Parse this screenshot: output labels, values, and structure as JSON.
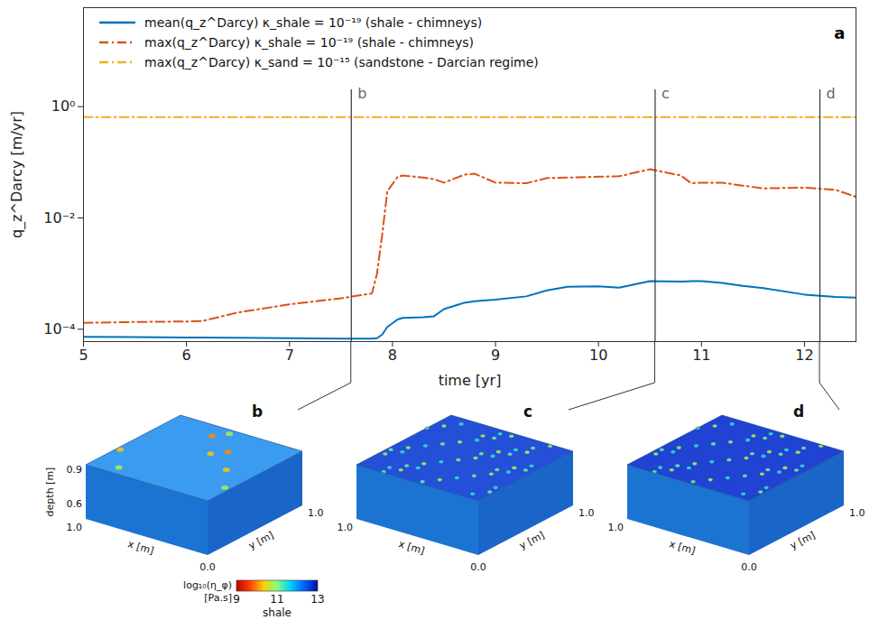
{
  "chart_data": {
    "type": "line",
    "panel_label": "a",
    "x_label": "time [yr]",
    "y_label": "q_z^Darcy [m/yr]",
    "log": "y",
    "grid": false,
    "legend": "top-left",
    "xlim": [
      5,
      12.5
    ],
    "xticks": [
      5,
      6,
      7,
      8,
      9,
      10,
      11,
      12
    ],
    "ylim": [
      6e-05,
      60
    ],
    "yticks": [
      {
        "value": 0.0001,
        "label": "10⁻⁴"
      },
      {
        "value": 0.01,
        "label": "10⁻²"
      },
      {
        "value": 1,
        "label": "10⁰"
      }
    ],
    "x": [
      5,
      5.5,
      6,
      6.15,
      6.5,
      7,
      7.5,
      7.8,
      7.85,
      7.9,
      7.95,
      8.05,
      8.1,
      8.3,
      8.4,
      8.5,
      8.7,
      8.8,
      9,
      9.3,
      9.5,
      9.7,
      10,
      10.2,
      10.5,
      10.8,
      10.9,
      11,
      11.2,
      11.4,
      11.6,
      12,
      12.3,
      12.5
    ],
    "series": [
      {
        "name": "mean(q_z^Darcy)   κ_shale = 10⁻¹⁹ (shale - chimneys)",
        "color": "#0072bd",
        "line_style": "solid",
        "values": [
          7.3e-05,
          7.2e-05,
          7.1e-05,
          7.1e-05,
          7e-05,
          6.9e-05,
          6.8e-05,
          6.8e-05,
          6.9e-05,
          8e-05,
          0.00011,
          0.00015,
          0.00016,
          0.000165,
          0.00017,
          0.00023,
          0.0003,
          0.00032,
          0.00034,
          0.00039,
          0.0005,
          0.00058,
          0.00059,
          0.00056,
          0.00073,
          0.00072,
          0.00073,
          0.00073,
          0.00068,
          0.0006,
          0.00055,
          0.00042,
          0.00038,
          0.00037
        ]
      },
      {
        "name": "max(q_z^Darcy)   κ_shale = 10⁻¹⁹ (shale - chimneys)",
        "color": "#d95319",
        "line_style": "dashdot",
        "values": [
          0.00013,
          0.000135,
          0.000138,
          0.00014,
          0.0002,
          0.00028,
          0.00036,
          0.00044,
          0.001,
          0.005,
          0.03,
          0.055,
          0.058,
          0.053,
          0.05,
          0.043,
          0.06,
          0.062,
          0.043,
          0.042,
          0.052,
          0.053,
          0.055,
          0.056,
          0.075,
          0.058,
          0.042,
          0.043,
          0.043,
          0.038,
          0.034,
          0.035,
          0.032,
          0.024
        ]
      },
      {
        "name": "max(q_z^Darcy)   κ_sand = 10⁻¹⁵ (sandstone - Darcian regime)",
        "color": "#edb120",
        "line_style": "dashdot",
        "values": [
          0.65,
          0.65,
          0.65,
          0.65,
          0.65,
          0.65,
          0.65,
          0.65,
          0.65,
          0.65,
          0.65,
          0.65,
          0.65,
          0.65,
          0.65,
          0.65,
          0.65,
          0.65,
          0.65,
          0.65,
          0.65,
          0.65,
          0.65,
          0.65,
          0.65,
          0.65,
          0.65,
          0.65,
          0.65,
          0.65,
          0.65,
          0.65,
          0.65,
          0.65
        ]
      }
    ],
    "markers": [
      {
        "label": "b",
        "x": 7.6,
        "y": 2
      },
      {
        "label": "c",
        "x": 10.55,
        "y": 2
      },
      {
        "label": "d",
        "x": 12.15,
        "y": 2
      }
    ]
  },
  "views": {
    "renderings": [
      {
        "label": "b",
        "depth_label": "depth [m]",
        "depth_ticks": [
          "0.9",
          "0.6"
        ],
        "x_label": "x [m]",
        "x_ticks": [
          "1.0",
          "0.0"
        ],
        "y_label": "y [m]",
        "y_ticks": [
          "1.0"
        ]
      },
      {
        "label": "c",
        "x_label": "x [m]",
        "x_ticks": [
          "1.0",
          "0.0"
        ],
        "y_label": "y [m]",
        "y_ticks": [
          "1.0"
        ]
      },
      {
        "label": "d",
        "x_label": "x [m]",
        "x_ticks": [
          "1.0",
          "0.0"
        ],
        "y_label": "y [m]",
        "y_ticks": [
          "1.0"
        ]
      }
    ],
    "colorbar": {
      "label": "log₁₀(η_φ)",
      "unit": "[Pa.s]",
      "caption": "shale",
      "range": [
        9,
        13
      ],
      "ticks": [
        9,
        11,
        13
      ],
      "colors": [
        "#c00000",
        "#ff4000",
        "#ffd000",
        "#80ff80",
        "#00d0ff",
        "#0060ff",
        "#0010a0"
      ]
    }
  }
}
